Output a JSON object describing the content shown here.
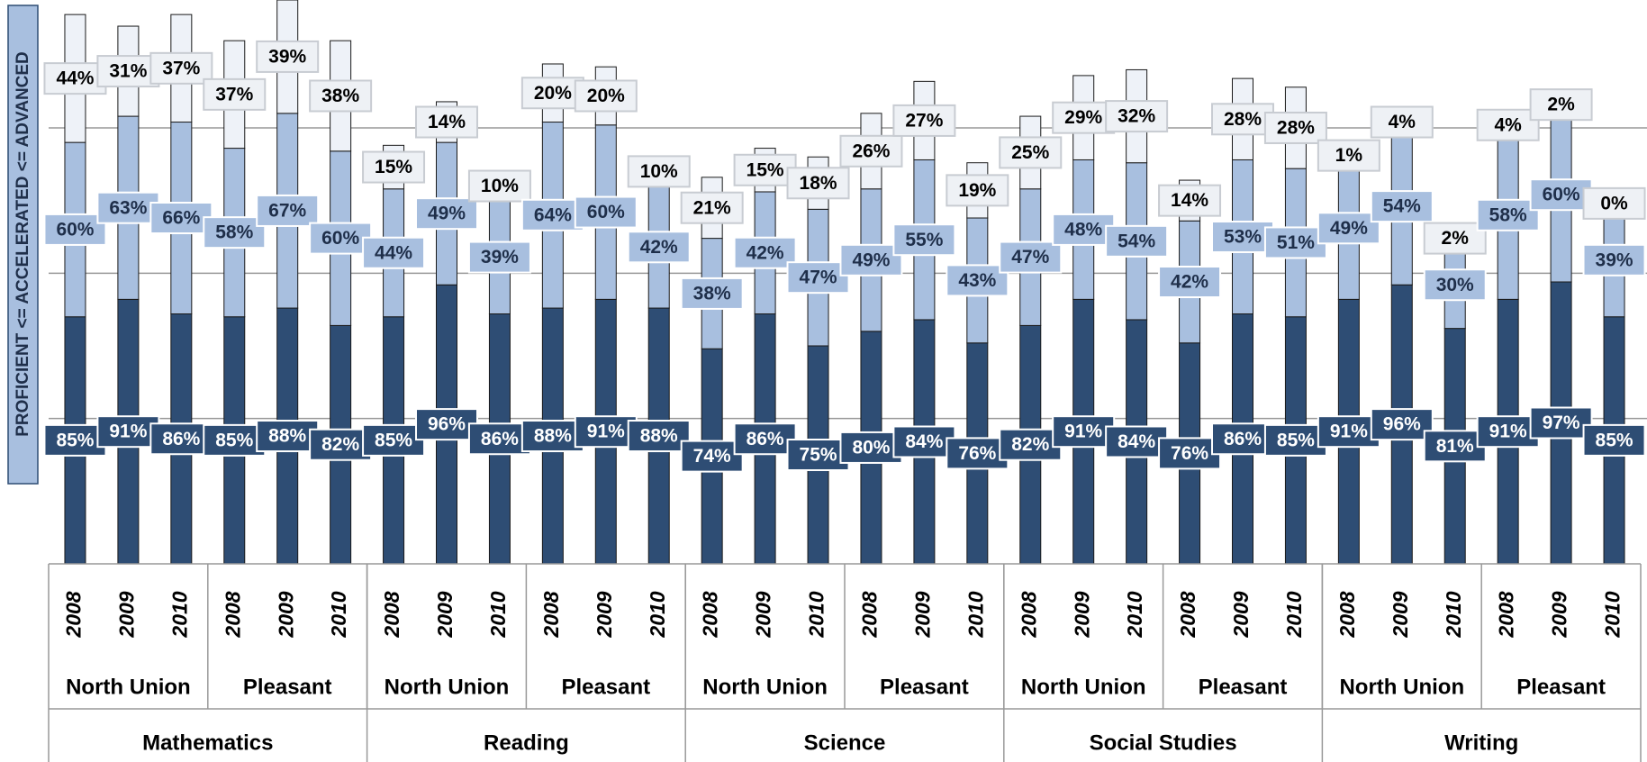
{
  "chart_data": {
    "type": "stacked_bar",
    "y_axis_label": "PROFICIENT <= ACCELERATED <= ADVANCED",
    "categories": [
      "2008",
      "2009",
      "2010",
      "2008",
      "2009",
      "2010",
      "2008",
      "2009",
      "2010",
      "2008",
      "2009",
      "2010",
      "2008",
      "2009",
      "2010",
      "2008",
      "2009",
      "2010",
      "2008",
      "2009",
      "2010",
      "2008",
      "2009",
      "2010",
      "2008",
      "2009",
      "2010",
      "2008",
      "2009",
      "2010"
    ],
    "district_labels": [
      "North Union",
      "Pleasant",
      "North Union",
      "Pleasant",
      "North Union",
      "Pleasant",
      "North Union",
      "Pleasant",
      "North Union",
      "Pleasant"
    ],
    "subject_labels": [
      "Mathematics",
      "Reading",
      "Science",
      "Social Studies",
      "Writing"
    ],
    "ylim": [
      0,
      194
    ],
    "yticks": [
      50,
      100,
      150
    ],
    "grid": true,
    "series": [
      {
        "color": "#2e4d74",
        "label_color": "#ffffff",
        "box_color": "#2e4d74",
        "box_stroke": "#ffffff",
        "values": [
          85,
          91,
          86,
          85,
          88,
          82,
          85,
          96,
          86,
          88,
          91,
          88,
          74,
          86,
          75,
          80,
          84,
          76,
          82,
          91,
          84,
          76,
          86,
          85,
          91,
          96,
          81,
          91,
          97,
          85
        ],
        "value_labels": [
          "85%",
          "91%",
          "86%",
          "85%",
          "88%",
          "82%",
          "85%",
          "96%",
          "86%",
          "88%",
          "91%",
          "88%",
          "74%",
          "86%",
          "75%",
          "80%",
          "84%",
          "76%",
          "82%",
          "91%",
          "84%",
          "76%",
          "86%",
          "85%",
          "91%",
          "96%",
          "81%",
          "91%",
          "97%",
          "85%"
        ]
      },
      {
        "color": "#a8bfdf",
        "label_color": "#1f2f4a",
        "box_color": "#a8bfdf",
        "box_stroke": "#ffffff",
        "values": [
          60,
          63,
          66,
          58,
          67,
          60,
          44,
          49,
          39,
          64,
          60,
          42,
          38,
          42,
          47,
          49,
          55,
          43,
          47,
          48,
          54,
          42,
          53,
          51,
          49,
          54,
          30,
          58,
          60,
          39
        ],
        "value_labels": [
          "60%",
          "63%",
          "66%",
          "58%",
          "67%",
          "60%",
          "44%",
          "49%",
          "39%",
          "64%",
          "60%",
          "42%",
          "38%",
          "42%",
          "47%",
          "49%",
          "55%",
          "43%",
          "47%",
          "48%",
          "54%",
          "42%",
          "53%",
          "51%",
          "49%",
          "54%",
          "30%",
          "58%",
          "60%",
          "39%"
        ]
      },
      {
        "color": "#eef2f8",
        "label_color": "#000000",
        "box_color": "#eef1f5",
        "box_stroke": "#c8ccd2",
        "values": [
          44,
          31,
          37,
          37,
          39,
          38,
          15,
          14,
          10,
          20,
          20,
          10,
          21,
          15,
          18,
          26,
          27,
          19,
          25,
          29,
          32,
          14,
          28,
          28,
          1,
          4,
          2,
          4,
          2,
          0
        ],
        "value_labels": [
          "44%",
          "31%",
          "37%",
          "37%",
          "39%",
          "38%",
          "15%",
          "14%",
          "10%",
          "20%",
          "20%",
          "10%",
          "21%",
          "15%",
          "18%",
          "26%",
          "27%",
          "19%",
          "25%",
          "29%",
          "32%",
          "14%",
          "28%",
          "28%",
          "1%",
          "4%",
          "2%",
          "4%",
          "2%",
          "0%"
        ]
      }
    ]
  }
}
